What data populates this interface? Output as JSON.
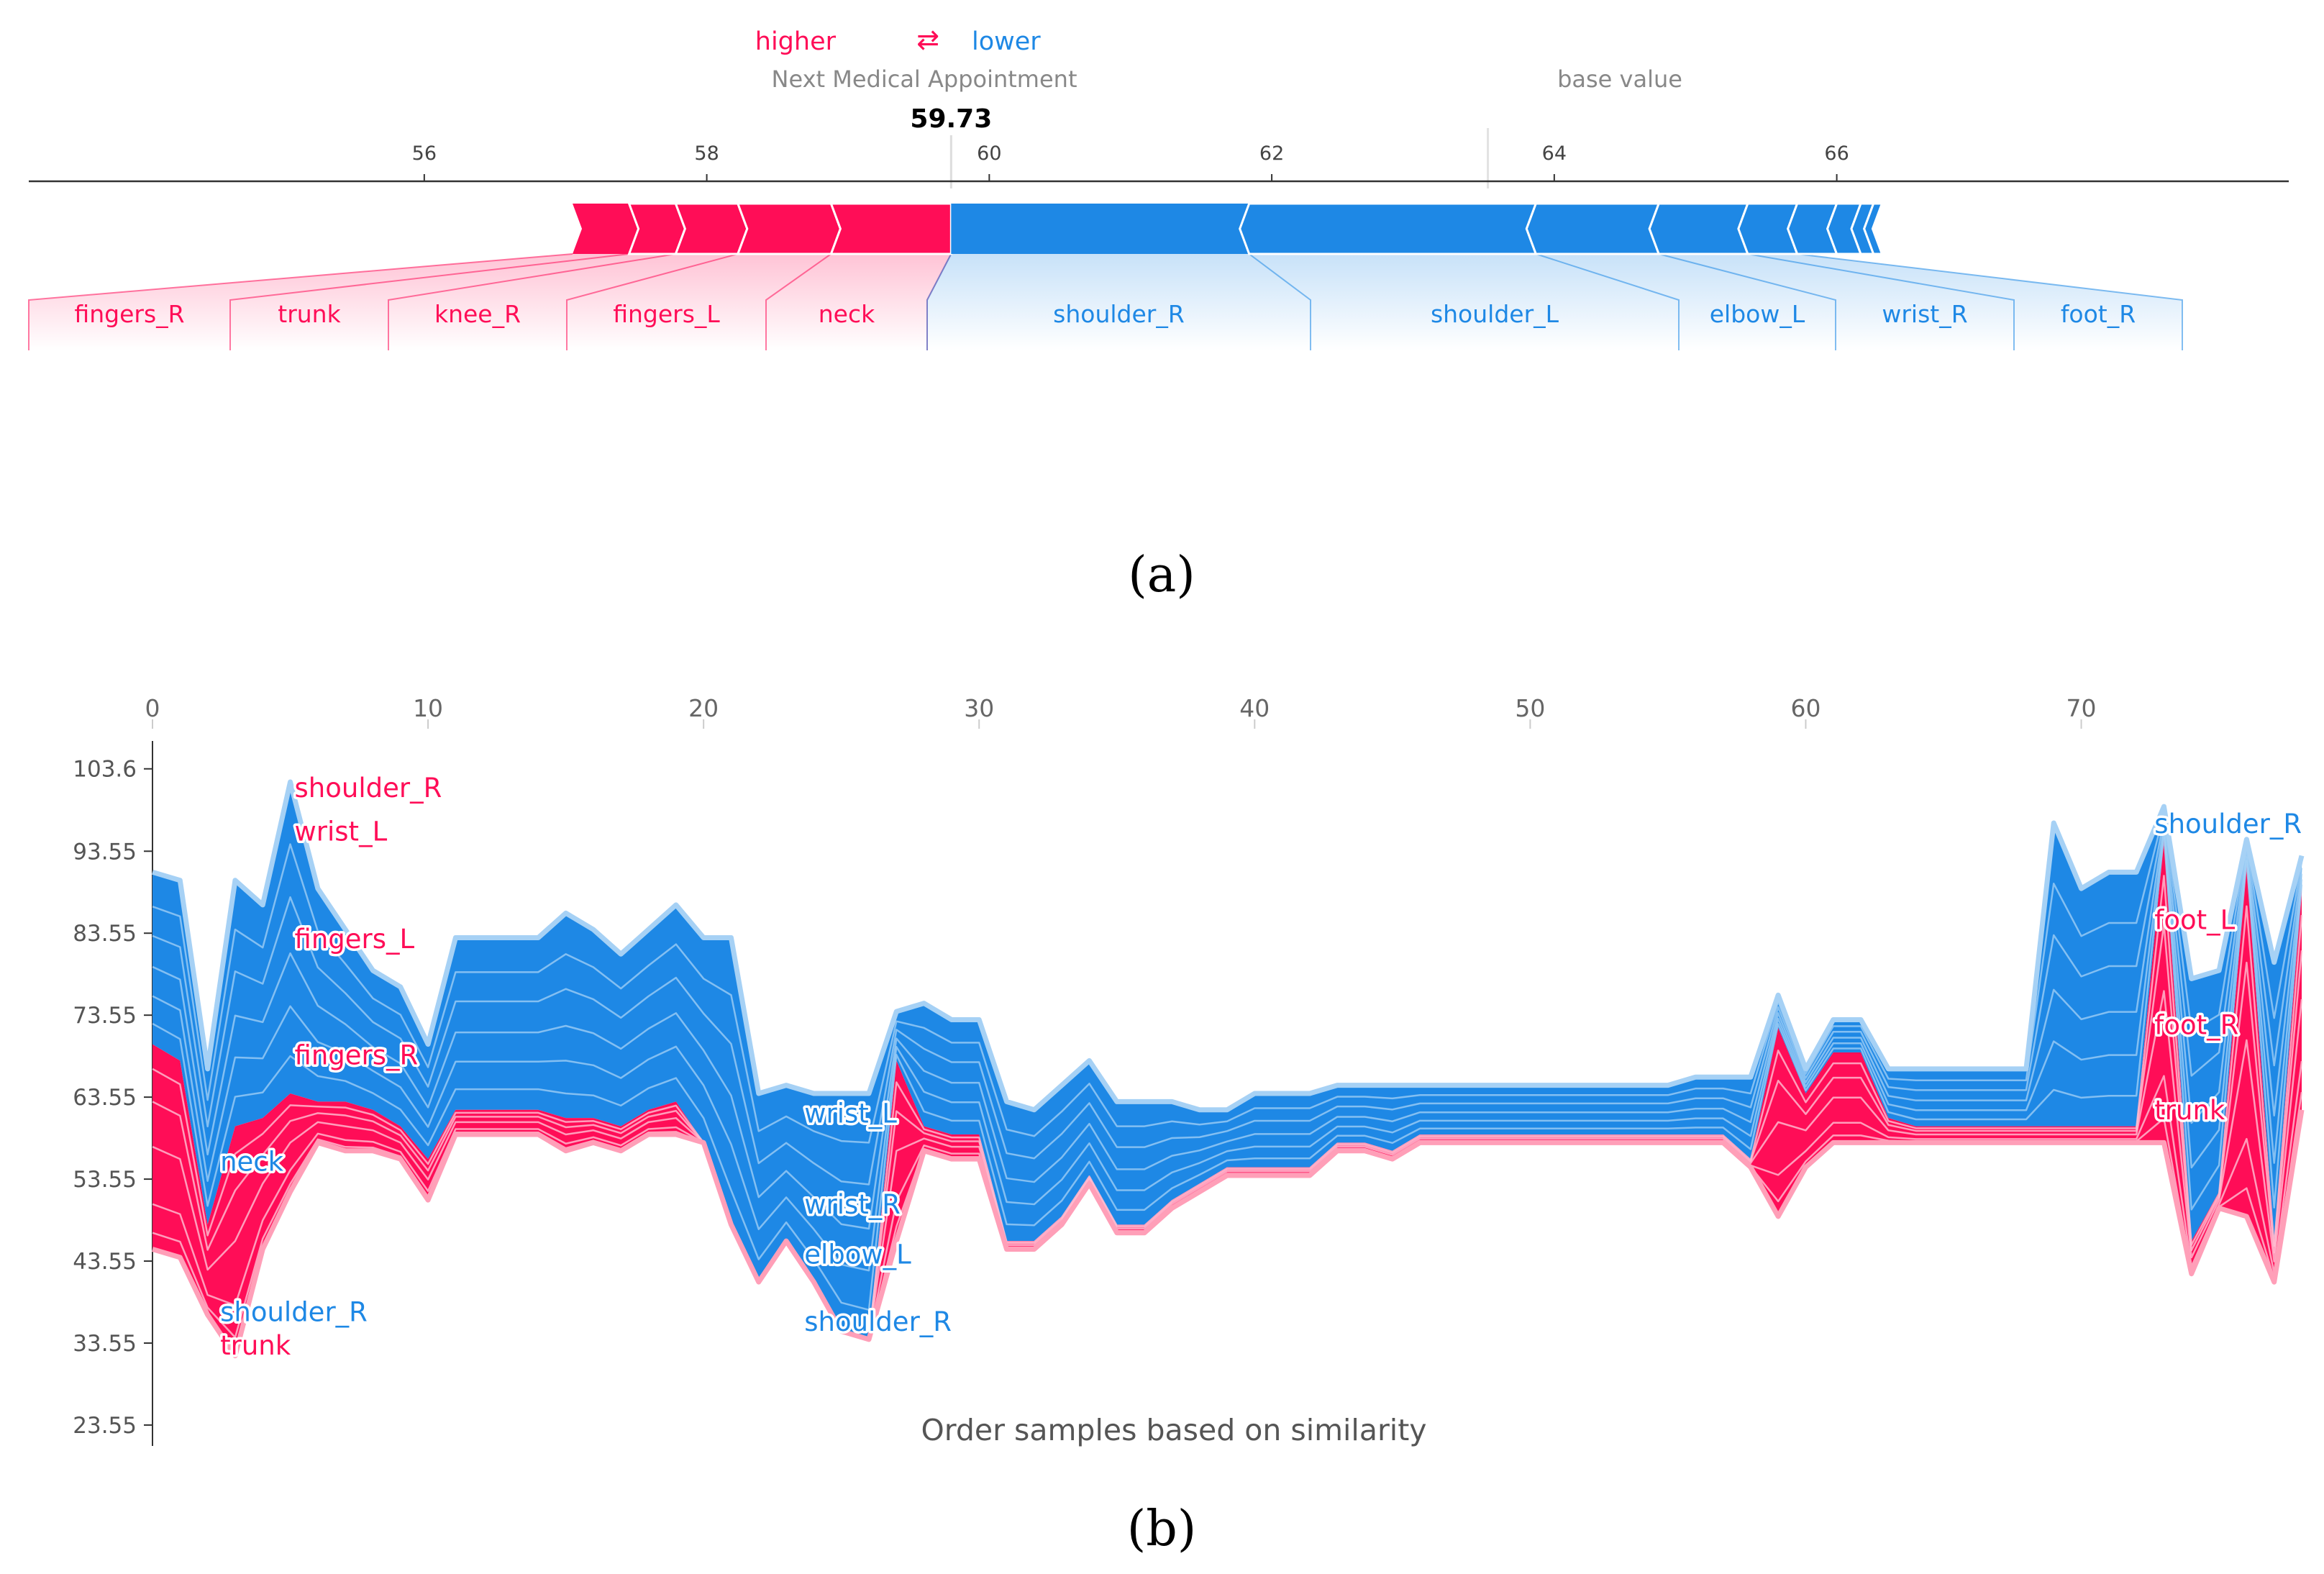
{
  "colors": {
    "positive": "#ff0d57",
    "negative": "#1e88e5",
    "positive_light": "#ff9fb8",
    "negative_light": "#a6d1f5",
    "axis": "#333333",
    "tick_text": "#444444",
    "muted_text": "#888888"
  },
  "panel_a": {
    "caption": "(a)",
    "legend": {
      "higher": "higher",
      "arrow": "⇄",
      "lower": "lower"
    },
    "output_name": "Next Medical Appointment",
    "output_value": "59.73",
    "output_numeric": 59.73,
    "base_label": "base value",
    "base_value": 63.53,
    "axis_ticks": [
      56,
      58,
      60,
      62,
      64,
      66
    ],
    "axis_range": [
      53.2,
      69.2
    ],
    "push_higher": [
      {
        "feature": "fingers_R",
        "from": 57.05,
        "to": 57.45
      },
      {
        "feature": "trunk",
        "from": 57.45,
        "to": 57.78
      },
      {
        "feature": "knee_R",
        "from": 57.78,
        "to": 58.22
      },
      {
        "feature": "fingers_L",
        "from": 58.22,
        "to": 58.88
      },
      {
        "feature": "neck",
        "from": 58.88,
        "to": 59.73
      }
    ],
    "push_lower": [
      {
        "feature": "shoulder_R",
        "from": 59.73,
        "to": 61.84
      },
      {
        "feature": "shoulder_L",
        "from": 61.84,
        "to": 63.87
      },
      {
        "feature": "elbow_L",
        "from": 63.87,
        "to": 64.74
      },
      {
        "feature": "wrist_R",
        "from": 64.74,
        "to": 65.37
      },
      {
        "feature": "foot_R",
        "from": 65.37,
        "to": 65.72
      },
      {
        "feature": "",
        "from": 65.72,
        "to": 66.0
      },
      {
        "feature": "",
        "from": 66.0,
        "to": 66.17
      },
      {
        "feature": "",
        "from": 66.17,
        "to": 66.26
      },
      {
        "feature": "",
        "from": 66.26,
        "to": 66.32
      }
    ]
  },
  "chart_data": {
    "type": "area",
    "caption": "(b)",
    "xlabel": "Order samples based on similarity",
    "x_ticks": [
      0,
      10,
      20,
      30,
      40,
      50,
      60,
      70
    ],
    "y_ticks": [
      "103.6",
      "93.55",
      "83.55",
      "73.55",
      "63.55",
      "53.55",
      "43.55",
      "33.55",
      "23.55"
    ],
    "x_range": [
      0,
      78
    ],
    "y_range": [
      21,
      107
    ],
    "x": [
      0,
      1,
      2,
      3,
      4,
      5,
      6,
      7,
      8,
      9,
      10,
      11,
      12,
      13,
      14,
      15,
      16,
      17,
      18,
      19,
      20,
      21,
      22,
      23,
      24,
      25,
      26,
      27,
      28,
      29,
      30,
      31,
      32,
      33,
      34,
      35,
      36,
      37,
      38,
      39,
      40,
      41,
      42,
      43,
      44,
      45,
      46,
      47,
      48,
      49,
      50,
      51,
      52,
      53,
      54,
      55,
      56,
      57,
      58,
      59,
      60,
      61,
      62,
      63,
      64,
      65,
      66,
      67,
      68,
      69,
      70,
      71,
      72,
      73,
      74,
      75,
      76,
      77,
      78
    ],
    "output": [
      91,
      90,
      67,
      90,
      87,
      102,
      89,
      84,
      79,
      77,
      70,
      83,
      83,
      83,
      83,
      86,
      84,
      81,
      84,
      87,
      83,
      83,
      64,
      65,
      64,
      64,
      64,
      74,
      75,
      73,
      73,
      63,
      62,
      65,
      68,
      63,
      63,
      63,
      62,
      62,
      64,
      64,
      64,
      65,
      65,
      65,
      65,
      65,
      65,
      65,
      65,
      65,
      65,
      65,
      65,
      65,
      66,
      66,
      66,
      76,
      67,
      73,
      73,
      67,
      67,
      67,
      67,
      67,
      67,
      97,
      89,
      91,
      91,
      99,
      78,
      79,
      95,
      80,
      93
    ],
    "bottom": [
      45,
      44,
      37,
      32,
      45,
      52,
      58,
      57,
      57,
      56,
      51,
      59,
      59,
      59,
      59,
      57,
      58,
      57,
      59,
      59,
      58,
      48,
      41,
      46,
      41,
      35,
      34,
      46,
      57,
      56,
      56,
      45,
      45,
      48,
      53,
      47,
      47,
      50,
      52,
      54,
      54,
      54,
      54,
      57,
      57,
      56,
      58,
      58,
      58,
      58,
      58,
      58,
      58,
      58,
      58,
      58,
      58,
      58,
      55,
      49,
      55,
      58,
      58,
      58,
      58,
      58,
      58,
      58,
      58,
      58,
      58,
      58,
      58,
      58,
      42,
      50,
      49,
      41,
      62
    ],
    "boundary": [
      70,
      68,
      48,
      60,
      61,
      64,
      63,
      63,
      62,
      60,
      56,
      62,
      62,
      62,
      62,
      61,
      61,
      60,
      62,
      63,
      58,
      48,
      41,
      46,
      41,
      35,
      34,
      68,
      60,
      59,
      59,
      46,
      46,
      49,
      54,
      48,
      48,
      51,
      53,
      55,
      55,
      55,
      55,
      58,
      58,
      57,
      59,
      59,
      59,
      59,
      59,
      59,
      59,
      59,
      59,
      59,
      59,
      59,
      56,
      72,
      64,
      69,
      69,
      61,
      60,
      60,
      60,
      60,
      60,
      60,
      60,
      60,
      60,
      95,
      46,
      52,
      92,
      46,
      89
    ],
    "labels": [
      {
        "text": "shoulder_R",
        "side": "higher",
        "x": 5,
        "y": 101.2
      },
      {
        "text": "wrist_L",
        "side": "higher",
        "x": 5,
        "y": 95.9
      },
      {
        "text": "fingers_L",
        "side": "higher",
        "x": 5,
        "y": 82.8
      },
      {
        "text": "fingers_R",
        "side": "higher",
        "x": 5,
        "y": 68.6
      },
      {
        "text": "neck",
        "side": "lower",
        "x": 2.3,
        "y": 55.6
      },
      {
        "text": "shoulder_R",
        "side": "lower",
        "x": 2.3,
        "y": 37.3
      },
      {
        "text": "trunk",
        "side": "higher",
        "x": 2.3,
        "y": 33.2
      },
      {
        "text": "wrist_L",
        "side": "lower",
        "x": 23.5,
        "y": 61.5
      },
      {
        "text": "wrist_R",
        "side": "lower",
        "x": 23.5,
        "y": 50.4
      },
      {
        "text": "elbow_L",
        "side": "lower",
        "x": 23.5,
        "y": 44.3
      },
      {
        "text": "shoulder_R",
        "side": "lower",
        "x": 23.5,
        "y": 36.1
      },
      {
        "text": "shoulder_R",
        "side": "lower",
        "x": 72.5,
        "y": 96.8
      },
      {
        "text": "foot_L",
        "side": "higher",
        "x": 72.5,
        "y": 85.1
      },
      {
        "text": "foot_R",
        "side": "higher",
        "x": 72.5,
        "y": 72.3
      },
      {
        "text": "trunk",
        "side": "higher",
        "x": 72.5,
        "y": 61.9
      }
    ]
  }
}
